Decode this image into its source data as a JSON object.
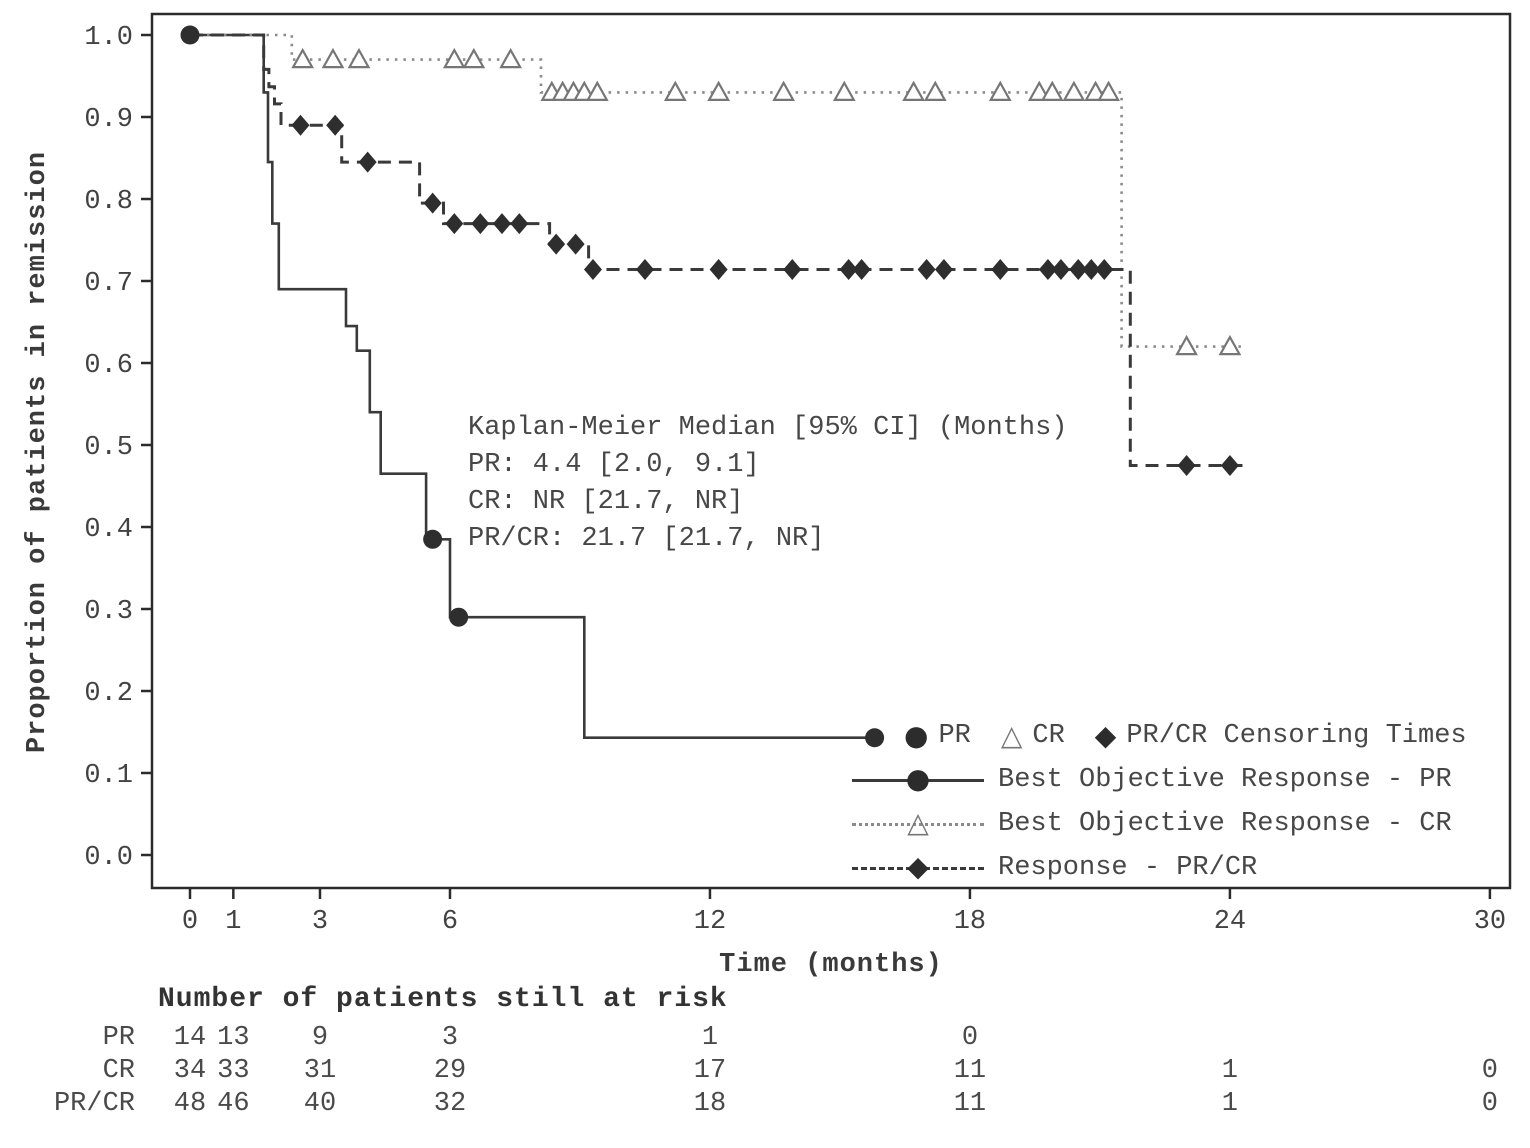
{
  "figure": {
    "y_axis_label": "Proportion of patients in remission",
    "x_axis_label": "Time (months)",
    "annotation_lines": [
      "Kaplan-Meier Median [95% CI] (Months)",
      "PR: 4.4 [2.0, 9.1]",
      "CR: NR [21.7, NR]",
      "PR/CR: 21.7 [21.7, NR]"
    ],
    "legend": {
      "glyphs": {
        "circle": "●",
        "triangle": "△",
        "diamond": "◆"
      },
      "censor_row": {
        "pr_label": "PR",
        "cr_label": "CR",
        "prcr_label": "PR/CR Censoring Times"
      },
      "rows": [
        {
          "style": "solid",
          "marker": "circle-filled",
          "label": "Best Objective Response - PR"
        },
        {
          "style": "dotted",
          "marker": "triangle-open",
          "label": "Best Objective Response - CR"
        },
        {
          "style": "dashed",
          "marker": "diamond-filled",
          "label": "Response - PR/CR"
        }
      ]
    },
    "risk_table": {
      "title": "Number of patients still at risk",
      "times": [
        0,
        1,
        3,
        6,
        12,
        18,
        24,
        30
      ],
      "rows": [
        {
          "label": "PR",
          "values": [
            "14",
            "13",
            "9",
            "3",
            "1",
            "0",
            "",
            ""
          ]
        },
        {
          "label": "CR",
          "values": [
            "34",
            "33",
            "31",
            "29",
            "17",
            "11",
            "1",
            "0"
          ]
        },
        {
          "label": "PR/CR",
          "values": [
            "48",
            "46",
            "40",
            "32",
            "18",
            "11",
            "1",
            "0"
          ]
        }
      ]
    }
  },
  "chart_data": {
    "type": "line",
    "subtype": "kaplan-meier-step",
    "title": "",
    "xlabel": "Time (months)",
    "ylabel": "Proportion of patients in remission",
    "xlim": [
      -1,
      30.8
    ],
    "ylim": [
      -0.04,
      1.03
    ],
    "x_ticks": [
      0,
      1,
      3,
      6,
      12,
      18,
      24,
      30
    ],
    "y_ticks": [
      0.0,
      0.1,
      0.2,
      0.3,
      0.4,
      0.5,
      0.6,
      0.7,
      0.8,
      0.9,
      1.0
    ],
    "grid": false,
    "legend_position": "lower right",
    "medians": {
      "PR": "4.4 [2.0, 9.1]",
      "CR": "NR [21.7, NR]",
      "PR/CR": "21.7 [21.7, NR]"
    },
    "series": [
      {
        "id": "PR",
        "name": "Best Objective Response - PR",
        "line_style": "solid",
        "marker": "circle-filled",
        "n_at_risk_start": 14,
        "step_points": [
          [
            0,
            1.0
          ],
          [
            1.7,
            0.93
          ],
          [
            1.8,
            0.845
          ],
          [
            1.9,
            0.77
          ],
          [
            2.05,
            0.69
          ],
          [
            3.6,
            0.645
          ],
          [
            3.85,
            0.615
          ],
          [
            4.15,
            0.54
          ],
          [
            4.4,
            0.465
          ],
          [
            5.45,
            0.385
          ],
          [
            6.0,
            0.29
          ],
          [
            9.1,
            0.143
          ]
        ],
        "end_time": 15.8,
        "censor_points": [
          [
            0,
            1.0
          ],
          [
            5.6,
            0.385
          ],
          [
            6.2,
            0.29
          ],
          [
            15.8,
            0.143
          ]
        ]
      },
      {
        "id": "CR",
        "name": "Best Objective Response - CR",
        "line_style": "dotted",
        "marker": "triangle-open",
        "n_at_risk_start": 34,
        "step_points": [
          [
            0,
            1.0
          ],
          [
            2.35,
            0.97
          ],
          [
            8.1,
            0.93
          ],
          [
            21.5,
            0.62
          ]
        ],
        "end_time": 24.3,
        "censor_points": [
          [
            2.6,
            0.97
          ],
          [
            3.3,
            0.97
          ],
          [
            3.9,
            0.97
          ],
          [
            6.1,
            0.97
          ],
          [
            6.55,
            0.97
          ],
          [
            7.4,
            0.97
          ],
          [
            8.35,
            0.93
          ],
          [
            8.6,
            0.93
          ],
          [
            8.85,
            0.93
          ],
          [
            9.1,
            0.93
          ],
          [
            9.4,
            0.93
          ],
          [
            11.2,
            0.93
          ],
          [
            12.2,
            0.93
          ],
          [
            13.7,
            0.93
          ],
          [
            15.1,
            0.93
          ],
          [
            16.7,
            0.93
          ],
          [
            17.2,
            0.93
          ],
          [
            18.7,
            0.93
          ],
          [
            19.6,
            0.93
          ],
          [
            19.9,
            0.93
          ],
          [
            20.4,
            0.93
          ],
          [
            20.9,
            0.93
          ],
          [
            21.2,
            0.93
          ],
          [
            23.0,
            0.62
          ],
          [
            24.0,
            0.62
          ]
        ]
      },
      {
        "id": "PR-CR",
        "name": "Response - PR/CR",
        "line_style": "dashed",
        "marker": "diamond-filled",
        "n_at_risk_start": 48,
        "step_points": [
          [
            0,
            1.0
          ],
          [
            1.7,
            0.958
          ],
          [
            1.82,
            0.937
          ],
          [
            1.95,
            0.916
          ],
          [
            2.1,
            0.89
          ],
          [
            3.5,
            0.845
          ],
          [
            5.3,
            0.795
          ],
          [
            5.85,
            0.77
          ],
          [
            8.3,
            0.745
          ],
          [
            9.2,
            0.714
          ],
          [
            21.7,
            0.475
          ]
        ],
        "end_time": 24.3,
        "censor_points": [
          [
            2.55,
            0.89
          ],
          [
            3.35,
            0.89
          ],
          [
            4.1,
            0.845
          ],
          [
            5.6,
            0.795
          ],
          [
            6.1,
            0.77
          ],
          [
            6.7,
            0.77
          ],
          [
            7.2,
            0.77
          ],
          [
            7.6,
            0.77
          ],
          [
            8.45,
            0.745
          ],
          [
            8.9,
            0.745
          ],
          [
            9.3,
            0.714
          ],
          [
            10.5,
            0.714
          ],
          [
            12.2,
            0.714
          ],
          [
            13.9,
            0.714
          ],
          [
            15.2,
            0.714
          ],
          [
            15.5,
            0.714
          ],
          [
            17.0,
            0.714
          ],
          [
            17.4,
            0.714
          ],
          [
            18.7,
            0.714
          ],
          [
            19.8,
            0.714
          ],
          [
            20.1,
            0.714
          ],
          [
            20.5,
            0.714
          ],
          [
            20.8,
            0.714
          ],
          [
            21.1,
            0.714
          ],
          [
            23.0,
            0.475
          ],
          [
            24.0,
            0.475
          ]
        ]
      }
    ]
  }
}
